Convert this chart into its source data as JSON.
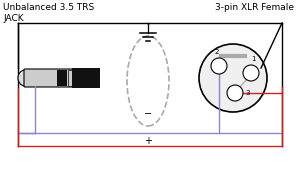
{
  "title_left": "Unbalanced 3.5 TRS",
  "title_left2": "JACK",
  "title_right": "3-pin XLR Female",
  "bg_color": "#ffffff",
  "line_color": "#000000",
  "red_color": "#cc2222",
  "blue_color": "#8888cc",
  "gray_color": "#aaaaaa",
  "figsize": [
    3.0,
    1.71
  ],
  "dpi": 100
}
